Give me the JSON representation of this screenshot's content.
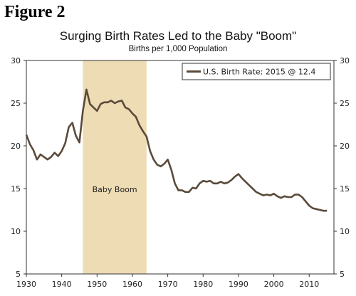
{
  "figure_label": "Figure 2",
  "chart_data": {
    "type": "line",
    "title": "Surging Birth Rates Led to the Baby \"Boom\"",
    "subtitle": "Births per 1,000 Population",
    "xlabel": "",
    "ylabel": "",
    "xlim": [
      1930,
      2017
    ],
    "ylim": [
      5,
      30
    ],
    "x_ticks": [
      1930,
      1940,
      1950,
      1960,
      1970,
      1980,
      1990,
      2000,
      2010
    ],
    "y_ticks": [
      5,
      10,
      15,
      20,
      25,
      30
    ],
    "legend_position": "top-right",
    "shaded_region": {
      "x_start": 1946,
      "x_end": 1964,
      "label": "Baby Boom",
      "color": "#eddcb4"
    },
    "series": [
      {
        "name": "U.S. Birth Rate: 2015 @ 12.4",
        "color": "#5a4a3a",
        "x": [
          1930,
          1931,
          1932,
          1933,
          1934,
          1935,
          1936,
          1937,
          1938,
          1939,
          1940,
          1941,
          1942,
          1943,
          1944,
          1945,
          1946,
          1947,
          1948,
          1949,
          1950,
          1951,
          1952,
          1953,
          1954,
          1955,
          1956,
          1957,
          1958,
          1959,
          1960,
          1961,
          1962,
          1963,
          1964,
          1965,
          1966,
          1967,
          1968,
          1969,
          1970,
          1971,
          1972,
          1973,
          1974,
          1975,
          1976,
          1977,
          1978,
          1979,
          1980,
          1981,
          1982,
          1983,
          1984,
          1985,
          1986,
          1987,
          1988,
          1989,
          1990,
          1991,
          1992,
          1993,
          1994,
          1995,
          1996,
          1997,
          1998,
          1999,
          2000,
          2001,
          2002,
          2003,
          2004,
          2005,
          2006,
          2007,
          2008,
          2009,
          2010,
          2011,
          2012,
          2013,
          2014,
          2015
        ],
        "values": [
          21.3,
          20.2,
          19.5,
          18.4,
          19.0,
          18.7,
          18.4,
          18.7,
          19.2,
          18.8,
          19.4,
          20.3,
          22.2,
          22.7,
          21.2,
          20.4,
          24.1,
          26.6,
          24.9,
          24.5,
          24.1,
          24.9,
          25.1,
          25.1,
          25.3,
          25.0,
          25.2,
          25.3,
          24.5,
          24.3,
          23.8,
          23.4,
          22.4,
          21.7,
          21.1,
          19.4,
          18.4,
          17.8,
          17.6,
          17.9,
          18.4,
          17.2,
          15.6,
          14.8,
          14.8,
          14.6,
          14.6,
          15.1,
          15.0,
          15.6,
          15.9,
          15.8,
          15.9,
          15.6,
          15.6,
          15.8,
          15.6,
          15.7,
          16.0,
          16.4,
          16.7,
          16.2,
          15.8,
          15.4,
          15.0,
          14.6,
          14.4,
          14.2,
          14.3,
          14.2,
          14.4,
          14.1,
          13.9,
          14.1,
          14.0,
          14.0,
          14.3,
          14.3,
          14.0,
          13.5,
          13.0,
          12.7,
          12.6,
          12.5,
          12.4,
          12.4
        ]
      }
    ]
  }
}
